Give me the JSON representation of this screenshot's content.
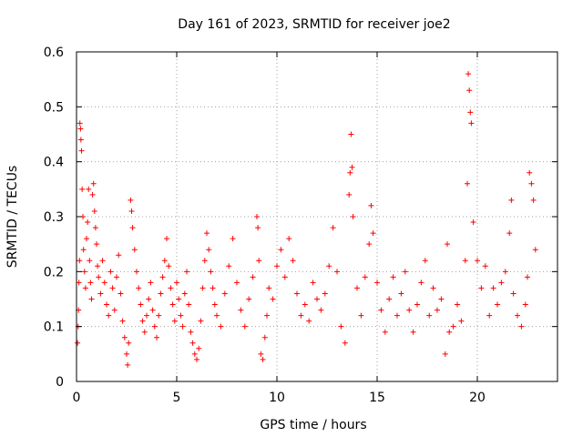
{
  "chart_data": {
    "type": "scatter",
    "title": "Day 161 of 2023, SRMTID for receiver joe2",
    "xlabel": "GPS time / hours",
    "ylabel": "SRMTID / TECUs",
    "xlim": [
      0,
      24
    ],
    "ylim": [
      0,
      0.6
    ],
    "x_ticks": [
      0,
      5,
      10,
      15,
      20
    ],
    "x_tick_labels": [
      "0",
      "5",
      "10",
      "15",
      "20"
    ],
    "y_ticks": [
      0,
      0.1,
      0.2,
      0.3,
      0.4,
      0.5,
      0.6
    ],
    "y_tick_labels": [
      "0",
      "0.1",
      "0.2",
      "0.3",
      "0.4",
      "0.5",
      "0.6"
    ],
    "grid": true,
    "marker": "plus",
    "series": [
      {
        "name": "SRMTID",
        "color": "#ff0000",
        "points": [
          [
            0.05,
            0.07
          ],
          [
            0.08,
            0.1
          ],
          [
            0.1,
            0.13
          ],
          [
            0.12,
            0.18
          ],
          [
            0.15,
            0.22
          ],
          [
            0.17,
            0.47
          ],
          [
            0.2,
            0.46
          ],
          [
            0.22,
            0.44
          ],
          [
            0.25,
            0.42
          ],
          [
            0.28,
            0.35
          ],
          [
            0.32,
            0.3
          ],
          [
            0.35,
            0.24
          ],
          [
            0.4,
            0.2
          ],
          [
            0.45,
            0.17
          ],
          [
            0.5,
            0.26
          ],
          [
            0.55,
            0.29
          ],
          [
            0.6,
            0.35
          ],
          [
            0.65,
            0.22
          ],
          [
            0.7,
            0.18
          ],
          [
            0.75,
            0.15
          ],
          [
            0.8,
            0.34
          ],
          [
            0.85,
            0.36
          ],
          [
            0.9,
            0.31
          ],
          [
            0.95,
            0.28
          ],
          [
            1.0,
            0.25
          ],
          [
            1.05,
            0.21
          ],
          [
            1.1,
            0.19
          ],
          [
            1.2,
            0.16
          ],
          [
            1.3,
            0.22
          ],
          [
            1.4,
            0.18
          ],
          [
            1.5,
            0.14
          ],
          [
            1.6,
            0.12
          ],
          [
            1.7,
            0.2
          ],
          [
            1.8,
            0.17
          ],
          [
            1.9,
            0.13
          ],
          [
            2.0,
            0.19
          ],
          [
            2.1,
            0.23
          ],
          [
            2.2,
            0.16
          ],
          [
            2.3,
            0.11
          ],
          [
            2.4,
            0.08
          ],
          [
            2.5,
            0.05
          ],
          [
            2.55,
            0.03
          ],
          [
            2.6,
            0.07
          ],
          [
            2.7,
            0.33
          ],
          [
            2.75,
            0.31
          ],
          [
            2.8,
            0.28
          ],
          [
            2.9,
            0.24
          ],
          [
            3.0,
            0.2
          ],
          [
            3.1,
            0.17
          ],
          [
            3.2,
            0.14
          ],
          [
            3.3,
            0.11
          ],
          [
            3.4,
            0.09
          ],
          [
            3.5,
            0.12
          ],
          [
            3.6,
            0.15
          ],
          [
            3.7,
            0.18
          ],
          [
            3.8,
            0.13
          ],
          [
            3.9,
            0.1
          ],
          [
            4.0,
            0.08
          ],
          [
            4.1,
            0.12
          ],
          [
            4.2,
            0.16
          ],
          [
            4.3,
            0.19
          ],
          [
            4.4,
            0.22
          ],
          [
            4.5,
            0.26
          ],
          [
            4.6,
            0.21
          ],
          [
            4.7,
            0.17
          ],
          [
            4.8,
            0.14
          ],
          [
            4.9,
            0.11
          ],
          [
            5.0,
            0.18
          ],
          [
            5.1,
            0.15
          ],
          [
            5.2,
            0.12
          ],
          [
            5.3,
            0.1
          ],
          [
            5.4,
            0.16
          ],
          [
            5.5,
            0.2
          ],
          [
            5.6,
            0.14
          ],
          [
            5.7,
            0.09
          ],
          [
            5.8,
            0.07
          ],
          [
            5.9,
            0.05
          ],
          [
            6.0,
            0.04
          ],
          [
            6.1,
            0.06
          ],
          [
            6.2,
            0.11
          ],
          [
            6.3,
            0.17
          ],
          [
            6.4,
            0.22
          ],
          [
            6.5,
            0.27
          ],
          [
            6.6,
            0.24
          ],
          [
            6.7,
            0.2
          ],
          [
            6.8,
            0.17
          ],
          [
            6.9,
            0.14
          ],
          [
            7.0,
            0.12
          ],
          [
            7.2,
            0.1
          ],
          [
            7.4,
            0.16
          ],
          [
            7.6,
            0.21
          ],
          [
            7.8,
            0.26
          ],
          [
            8.0,
            0.18
          ],
          [
            8.2,
            0.13
          ],
          [
            8.4,
            0.1
          ],
          [
            8.6,
            0.15
          ],
          [
            8.8,
            0.19
          ],
          [
            9.0,
            0.3
          ],
          [
            9.05,
            0.28
          ],
          [
            9.1,
            0.22
          ],
          [
            9.2,
            0.05
          ],
          [
            9.3,
            0.04
          ],
          [
            9.4,
            0.08
          ],
          [
            9.5,
            0.12
          ],
          [
            9.6,
            0.17
          ],
          [
            9.8,
            0.15
          ],
          [
            10.0,
            0.21
          ],
          [
            10.2,
            0.24
          ],
          [
            10.4,
            0.19
          ],
          [
            10.6,
            0.26
          ],
          [
            10.8,
            0.22
          ],
          [
            11.0,
            0.16
          ],
          [
            11.2,
            0.12
          ],
          [
            11.4,
            0.14
          ],
          [
            11.6,
            0.11
          ],
          [
            11.8,
            0.18
          ],
          [
            12.0,
            0.15
          ],
          [
            12.2,
            0.13
          ],
          [
            12.4,
            0.16
          ],
          [
            12.6,
            0.21
          ],
          [
            12.8,
            0.28
          ],
          [
            13.0,
            0.2
          ],
          [
            13.2,
            0.1
          ],
          [
            13.4,
            0.07
          ],
          [
            13.6,
            0.34
          ],
          [
            13.65,
            0.38
          ],
          [
            13.7,
            0.45
          ],
          [
            13.75,
            0.39
          ],
          [
            13.8,
            0.3
          ],
          [
            14.0,
            0.17
          ],
          [
            14.2,
            0.12
          ],
          [
            14.4,
            0.19
          ],
          [
            14.6,
            0.25
          ],
          [
            14.7,
            0.32
          ],
          [
            14.8,
            0.27
          ],
          [
            15.0,
            0.18
          ],
          [
            15.2,
            0.13
          ],
          [
            15.4,
            0.09
          ],
          [
            15.6,
            0.15
          ],
          [
            15.8,
            0.19
          ],
          [
            16.0,
            0.12
          ],
          [
            16.2,
            0.16
          ],
          [
            16.4,
            0.2
          ],
          [
            16.6,
            0.13
          ],
          [
            16.8,
            0.09
          ],
          [
            17.0,
            0.14
          ],
          [
            17.2,
            0.18
          ],
          [
            17.4,
            0.22
          ],
          [
            17.6,
            0.12
          ],
          [
            17.8,
            0.17
          ],
          [
            18.0,
            0.13
          ],
          [
            18.2,
            0.15
          ],
          [
            18.4,
            0.05
          ],
          [
            18.5,
            0.25
          ],
          [
            18.6,
            0.09
          ],
          [
            18.8,
            0.1
          ],
          [
            19.0,
            0.14
          ],
          [
            19.2,
            0.11
          ],
          [
            19.4,
            0.22
          ],
          [
            19.5,
            0.36
          ],
          [
            19.55,
            0.56
          ],
          [
            19.6,
            0.53
          ],
          [
            19.65,
            0.49
          ],
          [
            19.7,
            0.47
          ],
          [
            19.8,
            0.29
          ],
          [
            20.0,
            0.22
          ],
          [
            20.2,
            0.17
          ],
          [
            20.4,
            0.21
          ],
          [
            20.6,
            0.12
          ],
          [
            20.8,
            0.17
          ],
          [
            21.0,
            0.14
          ],
          [
            21.2,
            0.18
          ],
          [
            21.4,
            0.2
          ],
          [
            21.6,
            0.27
          ],
          [
            21.7,
            0.33
          ],
          [
            21.8,
            0.16
          ],
          [
            22.0,
            0.12
          ],
          [
            22.2,
            0.1
          ],
          [
            22.4,
            0.14
          ],
          [
            22.5,
            0.19
          ],
          [
            22.6,
            0.38
          ],
          [
            22.7,
            0.36
          ],
          [
            22.8,
            0.33
          ],
          [
            22.9,
            0.24
          ]
        ]
      }
    ]
  }
}
